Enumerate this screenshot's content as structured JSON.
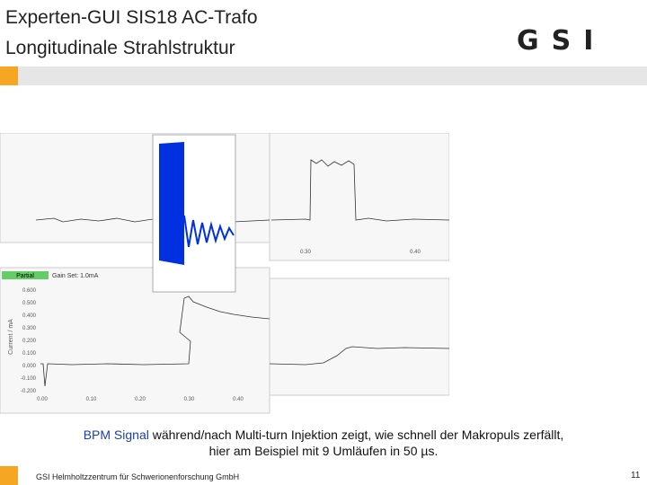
{
  "header": {
    "title_line1": "Experten-GUI SIS18 AC-Trafo",
    "title_line2": "Longitudinale Strahlstruktur",
    "logo": "GSI"
  },
  "plot": {
    "mode_label": "Partial",
    "gain_label": "Gain Set: 1.0mA",
    "y_axis_label": "Current / mA",
    "lower_yticks": [
      "0.600",
      "0.500",
      "0.400",
      "0.300",
      "0.200",
      "0.100",
      "0.000",
      "-0.100",
      "-0.200"
    ],
    "lower_xticks": [
      "0.00",
      "0.10",
      "0.20",
      "0.30",
      "0.40"
    ],
    "upper_right_xticks": [
      "0.30",
      "0.40"
    ]
  },
  "caption": {
    "highlight": "BPM Signal",
    "text": "während/nach Multi-turn Injektion zeigt, wie schnell der Makropuls zerfällt,",
    "line2": "hier am Beispiel mit 9 Umläufen in 50 µs."
  },
  "footer": {
    "institution": "GSI Helmholtzzentrum für Schwerionenforschung GmbH",
    "page": "11"
  }
}
